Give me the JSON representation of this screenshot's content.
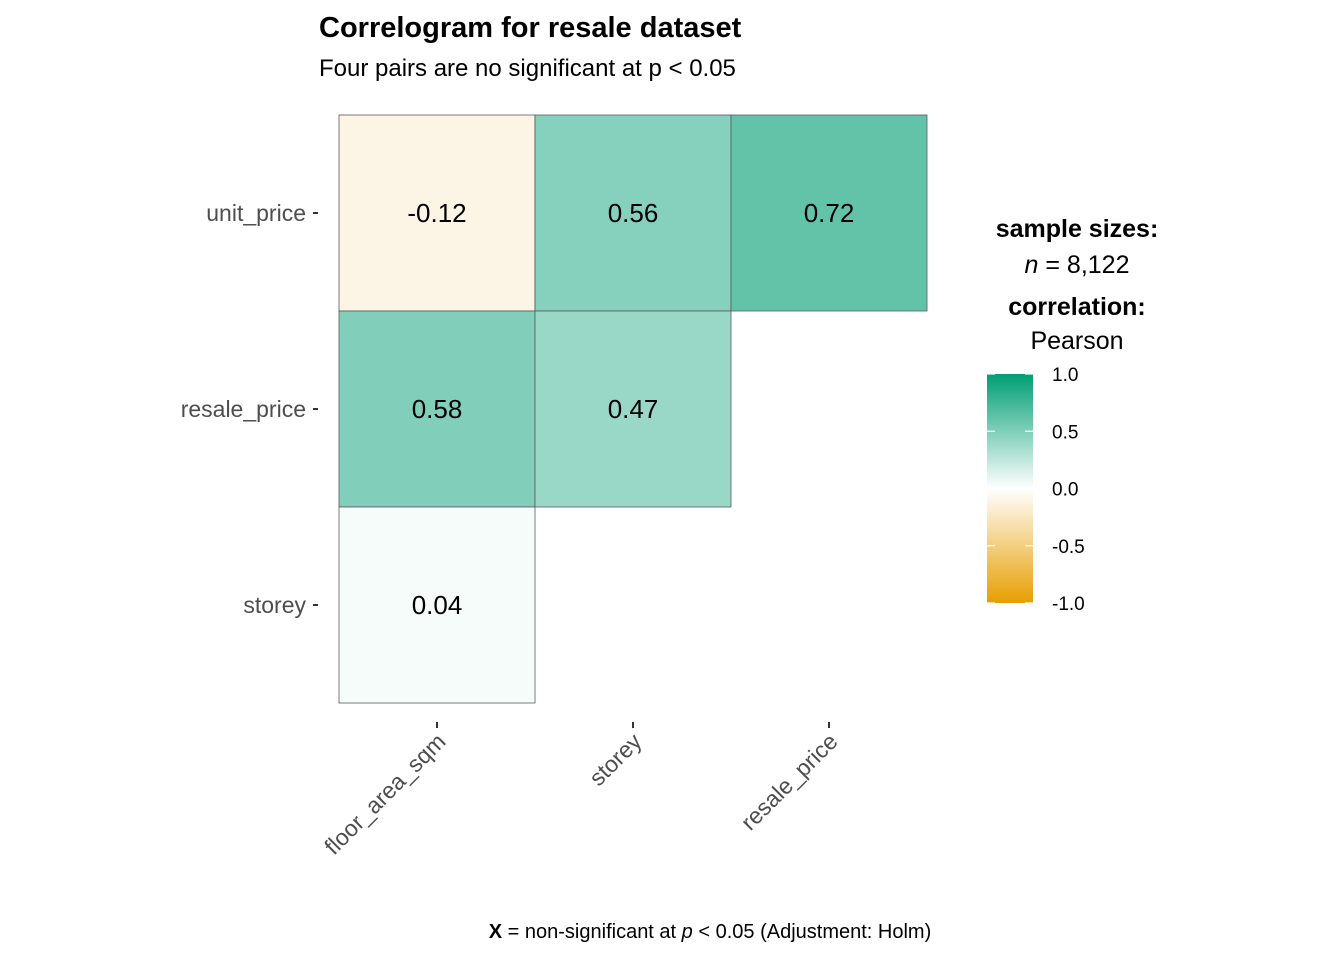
{
  "chart_data": {
    "type": "heatmap",
    "title": "Correlogram for resale dataset",
    "subtitle": "Four pairs are no significant at p < 0.05",
    "x_categories": [
      "floor_area_sqm",
      "storey",
      "resale_price"
    ],
    "y_categories": [
      "unit_price",
      "resale_price",
      "storey"
    ],
    "cells": [
      {
        "x": "floor_area_sqm",
        "y": "unit_price",
        "value": -0.12,
        "label": "-0.12"
      },
      {
        "x": "storey",
        "y": "unit_price",
        "value": 0.56,
        "label": "0.56"
      },
      {
        "x": "resale_price",
        "y": "unit_price",
        "value": 0.72,
        "label": "0.72"
      },
      {
        "x": "floor_area_sqm",
        "y": "resale_price",
        "value": 0.58,
        "label": "0.58"
      },
      {
        "x": "storey",
        "y": "resale_price",
        "value": 0.47,
        "label": "0.47"
      },
      {
        "x": "floor_area_sqm",
        "y": "storey",
        "value": 0.04,
        "label": "0.04"
      }
    ],
    "legend": {
      "sample_sizes_heading": "sample sizes:",
      "n_symbol": "n",
      "n_value": " = 8,122",
      "correlation_heading": "correlation:",
      "correlation_method": "Pearson",
      "ticks": [
        "1.0",
        "0.5",
        "0.0",
        "-0.5",
        "-1.0"
      ],
      "tick_values": [
        1.0,
        0.5,
        0.0,
        -0.5,
        -1.0
      ],
      "range": [
        -1,
        1
      ],
      "colors": {
        "low": "#E69F00",
        "mid": "#FFFFFF",
        "high": "#009E73"
      },
      "placement": "right"
    },
    "caption": {
      "symbol": "X",
      "text_1": " = non-significant at ",
      "p_symbol": "p",
      "text_2": " < 0.05 (Adjustment: Holm)"
    }
  }
}
